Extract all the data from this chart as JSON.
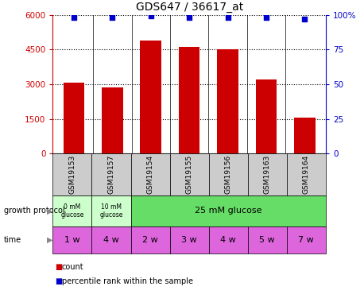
{
  "title": "GDS647 / 36617_at",
  "samples": [
    "GSM19153",
    "GSM19157",
    "GSM19154",
    "GSM19155",
    "GSM19156",
    "GSM19163",
    "GSM19164"
  ],
  "counts": [
    3050,
    2850,
    4900,
    4600,
    4500,
    3200,
    1550
  ],
  "percentile": [
    98,
    98,
    99,
    98,
    98,
    98,
    97
  ],
  "ylim_left": [
    0,
    6000
  ],
  "ylim_right": [
    0,
    100
  ],
  "yticks_left": [
    0,
    1500,
    3000,
    4500,
    6000
  ],
  "yticks_right": [
    0,
    25,
    50,
    75,
    100
  ],
  "ytick_labels_left": [
    "0",
    "1500",
    "3000",
    "4500",
    "6000"
  ],
  "ytick_labels_right": [
    "0",
    "25",
    "50",
    "75",
    "100%"
  ],
  "bar_color": "#cc0000",
  "dot_color": "#0000cc",
  "time_labels": [
    "1 w",
    "4 w",
    "2 w",
    "3 w",
    "4 w",
    "5 w",
    "7 w"
  ],
  "time_color": "#dd66dd",
  "sample_bg_color": "#cccccc",
  "left_axis_color": "#cc0000",
  "right_axis_color": "#0000cc",
  "protocol_light_green": "#ccffcc",
  "protocol_green": "#66dd66",
  "fig_width": 4.58,
  "fig_height": 3.75,
  "fig_dpi": 100
}
